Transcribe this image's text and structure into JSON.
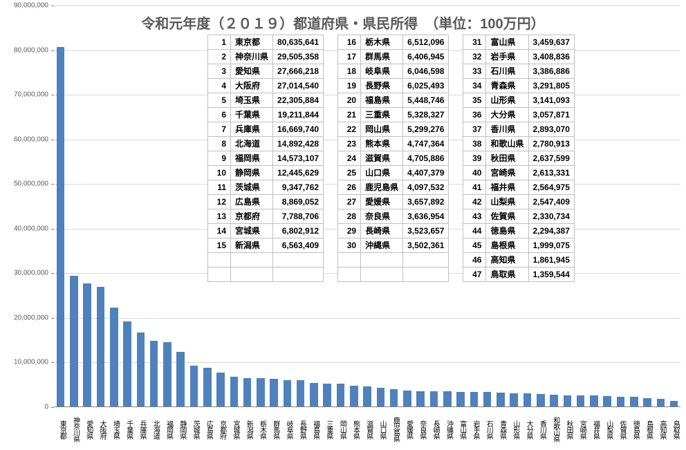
{
  "title": "令和元年度（２０１９）都道府県・県民所得　（単位：100万円）",
  "chart": {
    "type": "bar",
    "ylim": [
      0,
      90000000
    ],
    "ytick_step": 10000000,
    "bar_color": "#4f81bd",
    "grid_color": "#d9d9d9",
    "axis_color": "#808080",
    "background_color": "#ffffff",
    "title_color": "#595959",
    "title_fontsize": 20,
    "tick_fontsize": 10,
    "data": [
      {
        "rank": 1,
        "name": "東京都",
        "value": 80635641
      },
      {
        "rank": 2,
        "name": "神奈川県",
        "value": 29505358
      },
      {
        "rank": 3,
        "name": "愛知県",
        "value": 27666218
      },
      {
        "rank": 4,
        "name": "大阪府",
        "value": 27014540
      },
      {
        "rank": 5,
        "name": "埼玉県",
        "value": 22305884
      },
      {
        "rank": 6,
        "name": "千葉県",
        "value": 19211844
      },
      {
        "rank": 7,
        "name": "兵庫県",
        "value": 16669740
      },
      {
        "rank": 8,
        "name": "北海道",
        "value": 14892428
      },
      {
        "rank": 9,
        "name": "福岡県",
        "value": 14573107
      },
      {
        "rank": 10,
        "name": "静岡県",
        "value": 12445629
      },
      {
        "rank": 11,
        "name": "茨城県",
        "value": 9347762
      },
      {
        "rank": 12,
        "name": "広島県",
        "value": 8869052
      },
      {
        "rank": 13,
        "name": "京都府",
        "value": 7788706
      },
      {
        "rank": 14,
        "name": "宮城県",
        "value": 6802912
      },
      {
        "rank": 15,
        "name": "新潟県",
        "value": 6563409
      },
      {
        "rank": 16,
        "name": "栃木県",
        "value": 6512096
      },
      {
        "rank": 17,
        "name": "群馬県",
        "value": 6406945
      },
      {
        "rank": 18,
        "name": "岐阜県",
        "value": 6046598
      },
      {
        "rank": 19,
        "name": "長野県",
        "value": 6025493
      },
      {
        "rank": 20,
        "name": "福島県",
        "value": 5448746
      },
      {
        "rank": 21,
        "name": "三重県",
        "value": 5328327
      },
      {
        "rank": 22,
        "name": "岡山県",
        "value": 5299276
      },
      {
        "rank": 23,
        "name": "熊本県",
        "value": 4747364
      },
      {
        "rank": 24,
        "name": "滋賀県",
        "value": 4705886
      },
      {
        "rank": 25,
        "name": "山口県",
        "value": 4407379
      },
      {
        "rank": 26,
        "name": "鹿児島県",
        "value": 4097532
      },
      {
        "rank": 27,
        "name": "愛媛県",
        "value": 3657892
      },
      {
        "rank": 28,
        "name": "奈良県",
        "value": 3636954
      },
      {
        "rank": 29,
        "name": "長崎県",
        "value": 3523657
      },
      {
        "rank": 30,
        "name": "沖縄県",
        "value": 3502361
      },
      {
        "rank": 31,
        "name": "富山県",
        "value": 3459637
      },
      {
        "rank": 32,
        "name": "岩手県",
        "value": 3408836
      },
      {
        "rank": 33,
        "name": "石川県",
        "value": 3386886
      },
      {
        "rank": 34,
        "name": "青森県",
        "value": 3291805
      },
      {
        "rank": 35,
        "name": "山形県",
        "value": 3141093
      },
      {
        "rank": 36,
        "name": "大分県",
        "value": 3057871
      },
      {
        "rank": 37,
        "name": "香川県",
        "value": 2893070
      },
      {
        "rank": 38,
        "name": "和歌山県",
        "value": 2780913
      },
      {
        "rank": 39,
        "name": "秋田県",
        "value": 2637599
      },
      {
        "rank": 40,
        "name": "宮崎県",
        "value": 2613331
      },
      {
        "rank": 41,
        "name": "福井県",
        "value": 2564975
      },
      {
        "rank": 42,
        "name": "山梨県",
        "value": 2547409
      },
      {
        "rank": 43,
        "name": "佐賀県",
        "value": 2330734
      },
      {
        "rank": 44,
        "name": "徳島県",
        "value": 2294387
      },
      {
        "rank": 45,
        "name": "島根県",
        "value": 1999075
      },
      {
        "rank": 46,
        "name": "高知県",
        "value": 1861945
      },
      {
        "rank": 47,
        "name": "鳥取県",
        "value": 1359544
      }
    ]
  },
  "table": {
    "columns_per_group": 15,
    "groups": 3,
    "last_group_rows": 17
  }
}
